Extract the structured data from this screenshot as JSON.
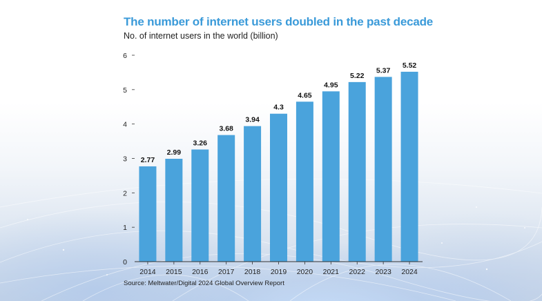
{
  "title": "The number of internet users doubled in the past decade",
  "subtitle": "No. of internet users in the world (billion)",
  "source": "Source: Meltwater/Digital 2024 Global Overview Report",
  "colors": {
    "title": "#3a9ad9",
    "bar": "#4aa3dc",
    "text": "#222222"
  },
  "chart_data": {
    "type": "bar",
    "title": "The number of internet users doubled in the past decade",
    "subtitle": "No. of internet users in the world (billion)",
    "categories": [
      "2014",
      "2015",
      "2016",
      "2017",
      "2018",
      "2019",
      "2020",
      "2021",
      "2022",
      "2023",
      "2024"
    ],
    "values": [
      2.77,
      2.99,
      3.26,
      3.68,
      3.94,
      4.3,
      4.65,
      4.95,
      5.22,
      5.37,
      5.52
    ],
    "value_labels": [
      "2.77",
      "2.99",
      "3.26",
      "3.68",
      "3.94",
      "4.3",
      "4.65",
      "4.95",
      "5.22",
      "5.37",
      "5.52"
    ],
    "yticks": [
      "0",
      "1",
      "2",
      "3",
      "4",
      "5",
      "6"
    ],
    "ylim": [
      0,
      6
    ],
    "xlabel": "",
    "ylabel": "",
    "grid": false,
    "legend": "none"
  }
}
